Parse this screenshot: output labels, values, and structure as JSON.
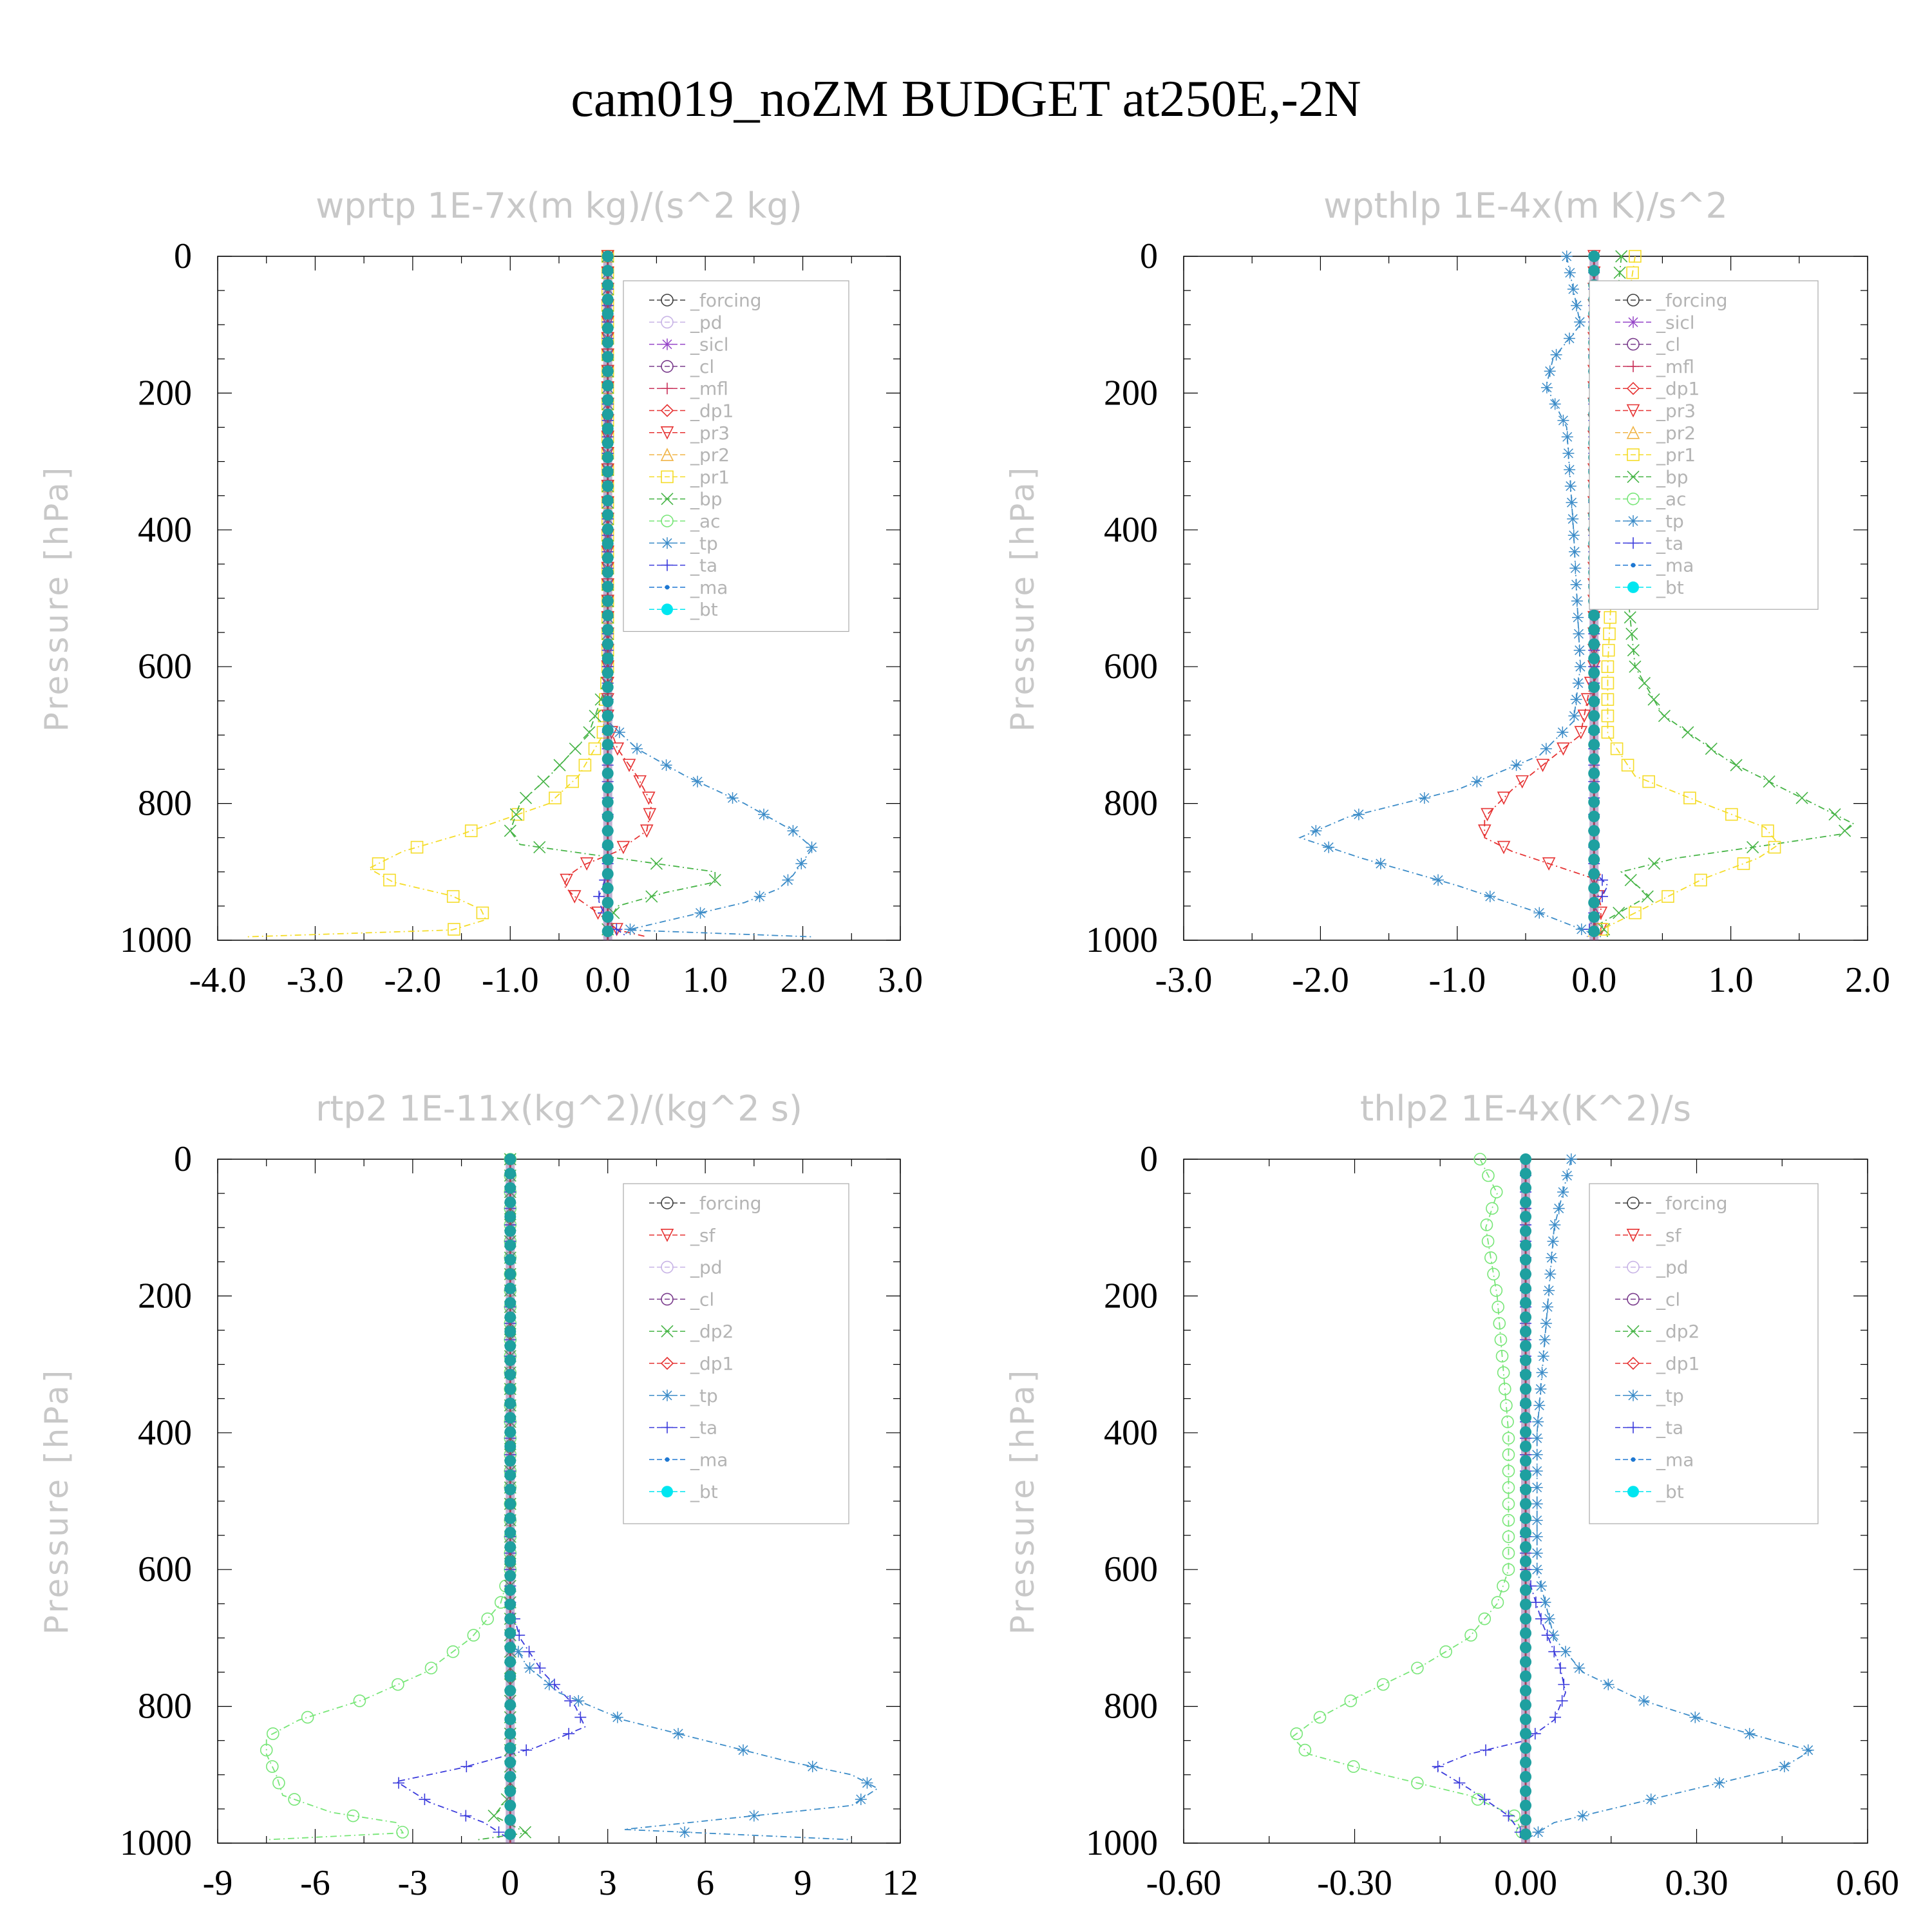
{
  "figure": {
    "title": "cam019_noZM  BUDGET at250E,-2N"
  },
  "colors": {
    "black": "#404040",
    "lavender": "#c8b4e6",
    "violet": "#9646c8",
    "purple": "#7a3c8c",
    "crimson": "#c8325a",
    "red": "#e63232",
    "orange": "#f0b446",
    "yellow": "#f5dc28",
    "green": "#46b446",
    "lightgreen": "#78e678",
    "steelblue": "#3c8cc8",
    "blue": "#3c3cdc",
    "azure": "#1e78d2",
    "cyan": "#00e6f0",
    "bt_fill": "#1ea0a0"
  },
  "chart_data": [
    {
      "type": "line",
      "title": "wprtp  1E-7x(m kg)/(s^2 kg)",
      "ylabel": "Pressure [hPa]",
      "xlabel": "",
      "xlim": [
        -4.0,
        3.0
      ],
      "ylim": [
        1000,
        0
      ],
      "y_inverted": true,
      "xticks": [
        "-4.0",
        "-3.0",
        "-2.0",
        "-1.0",
        "0.0",
        "1.0",
        "2.0",
        "3.0"
      ],
      "yticks": [
        "0",
        "200",
        "400",
        "600",
        "800",
        "1000"
      ],
      "legend_position": "upper-right",
      "legend": [
        "_forcing",
        "_pd",
        "_sicl",
        "_cl",
        "_mfl",
        "_dp1",
        "_pr3",
        "_pr2",
        "_pr1",
        "_bp",
        "_ac",
        "_tp",
        "_ta",
        "_ma",
        "_bt"
      ],
      "series": [
        {
          "name": "_pr1",
          "color": "yellow",
          "marker": "square",
          "p": [
            0,
            600,
            700,
            760,
            800,
            820,
            845,
            870,
            895,
            915,
            935,
            955,
            970,
            985,
            995
          ],
          "x": [
            0,
            0,
            -0.05,
            -0.3,
            -0.6,
            -1.0,
            -1.5,
            -2.1,
            -2.45,
            -2.2,
            -1.6,
            -1.3,
            -1.25,
            -1.6,
            -3.7
          ]
        },
        {
          "name": "_bp",
          "color": "green",
          "marker": "x",
          "p": [
            0,
            620,
            700,
            760,
            800,
            840,
            860,
            880,
            900,
            915,
            930,
            950,
            975,
            995
          ],
          "x": [
            0,
            0,
            -0.2,
            -0.6,
            -0.9,
            -1.0,
            -0.9,
            0.1,
            1.1,
            1.1,
            0.6,
            0.1,
            0.0,
            0.0
          ]
        },
        {
          "name": "_pr3",
          "color": "red",
          "marker": "triangle-down",
          "p": [
            0,
            680,
            720,
            760,
            800,
            840,
            870,
            890,
            905,
            920,
            935,
            960,
            985,
            995
          ],
          "x": [
            0,
            0,
            0.1,
            0.3,
            0.45,
            0.4,
            0.1,
            -0.25,
            -0.4,
            -0.45,
            -0.35,
            -0.1,
            0.1,
            0.4
          ]
        },
        {
          "name": "_tp",
          "color": "steelblue",
          "marker": "asterisk",
          "p": [
            0,
            680,
            720,
            760,
            800,
            840,
            865,
            885,
            905,
            925,
            945,
            965,
            985,
            995
          ],
          "x": [
            0,
            0,
            0.3,
            0.8,
            1.4,
            1.9,
            2.1,
            2.0,
            1.9,
            1.75,
            1.4,
            0.8,
            0.2,
            2.1
          ]
        },
        {
          "name": "_ta",
          "color": "blue",
          "marker": "plus",
          "p": [
            0,
            900,
            940,
            975,
            995
          ],
          "x": [
            0,
            0,
            -0.1,
            0,
            0.2
          ]
        },
        {
          "name": "_bt",
          "color": "bt_fill",
          "marker": "dot",
          "p": [
            0,
            1000
          ],
          "x": [
            0,
            0
          ]
        }
      ]
    },
    {
      "type": "line",
      "title": "wpthlp  1E-4x(m K)/s^2",
      "ylabel": "Pressure [hPa]",
      "xlabel": "",
      "xlim": [
        -3.0,
        2.0
      ],
      "ylim": [
        1000,
        0
      ],
      "y_inverted": true,
      "xticks": [
        "-3.0",
        "-2.0",
        "-1.0",
        "0.0",
        "1.0",
        "2.0"
      ],
      "yticks": [
        "0",
        "200",
        "400",
        "600",
        "800",
        "1000"
      ],
      "legend_position": "upper-right",
      "legend": [
        "_forcing",
        "_sicl",
        "_cl",
        "_mfl",
        "_dp1",
        "_pr3",
        "_pr2",
        "_pr1",
        "_bp",
        "_ac",
        "_tp",
        "_ta",
        "_ma",
        "_bt"
      ],
      "series": [
        {
          "name": "_tp",
          "color": "steelblue",
          "marker": "asterisk",
          "p": [
            0,
            100,
            150,
            190,
            250,
            400,
            600,
            680,
            730,
            780,
            820,
            850,
            880,
            920,
            960,
            995
          ],
          "x": [
            -0.2,
            -0.1,
            -0.3,
            -0.35,
            -0.2,
            -0.15,
            -0.1,
            -0.15,
            -0.4,
            -1.0,
            -1.8,
            -2.15,
            -1.7,
            -1.0,
            -0.4,
            0.05
          ]
        },
        {
          "name": "_pr3",
          "color": "red",
          "marker": "triangle-down",
          "p": [
            0,
            600,
            700,
            740,
            780,
            820,
            850,
            870,
            890,
            910,
            950,
            995
          ],
          "x": [
            0,
            0,
            -0.1,
            -0.35,
            -0.6,
            -0.8,
            -0.8,
            -0.6,
            -0.3,
            0,
            0.05,
            0.05
          ]
        },
        {
          "name": "_bp",
          "color": "green",
          "marker": "x",
          "p": [
            0,
            100,
            200,
            400,
            600,
            670,
            740,
            800,
            830,
            845,
            860,
            880,
            900,
            935,
            975,
            995
          ],
          "x": [
            0.2,
            0.15,
            0.3,
            0.2,
            0.3,
            0.5,
            1.0,
            1.6,
            1.9,
            1.8,
            1.3,
            0.6,
            0.2,
            0.4,
            0.05,
            0.1
          ]
        },
        {
          "name": "_pr1",
          "color": "yellow",
          "marker": "square",
          "p": [
            0,
            200,
            400,
            600,
            700,
            760,
            800,
            835,
            860,
            880,
            910,
            950,
            995
          ],
          "x": [
            0.3,
            0.15,
            0.15,
            0.1,
            0.1,
            0.3,
            0.8,
            1.25,
            1.35,
            1.2,
            0.8,
            0.4,
            -0.05
          ]
        },
        {
          "name": "_ta",
          "color": "blue",
          "marker": "plus",
          "p": [
            0,
            900,
            920,
            960,
            995
          ],
          "x": [
            0,
            0,
            0.1,
            0,
            -0.05
          ]
        },
        {
          "name": "_bt",
          "color": "bt_fill",
          "marker": "dot",
          "p": [
            0,
            1000
          ],
          "x": [
            0,
            0
          ]
        }
      ]
    },
    {
      "type": "line",
      "title": "rtp2  1E-11x(kg^2)/(kg^2 s)",
      "ylabel": "Pressure [hPa]",
      "xlabel": "",
      "xlim": [
        -9,
        12
      ],
      "ylim": [
        1000,
        0
      ],
      "y_inverted": true,
      "xticks": [
        "-9",
        "-6",
        "-3",
        "0",
        "3",
        "6",
        "9",
        "12"
      ],
      "yticks": [
        "0",
        "200",
        "400",
        "600",
        "800",
        "1000"
      ],
      "legend_position": "upper-right",
      "legend": [
        "_forcing",
        "_sf",
        "_pd",
        "_cl",
        "_dp2",
        "_dp1",
        "_tp",
        "_ta",
        "_ma",
        "_bt"
      ],
      "series": [
        {
          "name": "_dp1",
          "color": "lightgreen",
          "marker": "circle",
          "p": [
            0,
            600,
            650,
            700,
            750,
            790,
            820,
            845,
            870,
            900,
            930,
            955,
            970,
            985,
            995
          ],
          "x": [
            0,
            0,
            -0.3,
            -1.2,
            -2.6,
            -4.5,
            -6.5,
            -7.5,
            -7.5,
            -7.2,
            -7.0,
            -5.5,
            -3.5,
            -3.3,
            -7.5
          ]
        },
        {
          "name": "_tp",
          "color": "steelblue",
          "marker": "asterisk",
          "p": [
            0,
            700,
            740,
            780,
            820,
            850,
            880,
            900,
            920,
            945,
            965,
            980,
            995
          ],
          "x": [
            0,
            0,
            0.5,
            1.5,
            3.5,
            6.0,
            8.5,
            10.5,
            11.3,
            10.5,
            6.5,
            3.5,
            10.5
          ]
        },
        {
          "name": "_ta",
          "color": "blue",
          "marker": "plus",
          "p": [
            0,
            650,
            700,
            750,
            800,
            830,
            860,
            890,
            910,
            940,
            970,
            995
          ],
          "x": [
            0,
            0,
            0.3,
            1.0,
            2.0,
            2.3,
            0.8,
            -1.5,
            -3.5,
            -2.5,
            -0.8,
            0
          ]
        },
        {
          "name": "_dp2",
          "color": "green",
          "marker": "x",
          "p": [
            0,
            930,
            960,
            985,
            995
          ],
          "x": [
            0,
            0,
            -0.5,
            0.5,
            -1.0
          ]
        },
        {
          "name": "_bt",
          "color": "bt_fill",
          "marker": "dot",
          "p": [
            0,
            1000
          ],
          "x": [
            0,
            0
          ]
        }
      ]
    },
    {
      "type": "line",
      "title": "thlp2  1E-4x(K^2)/s",
      "ylabel": "Pressure [hPa]",
      "xlabel": "",
      "xlim": [
        -0.6,
        0.6
      ],
      "ylim": [
        1000,
        0
      ],
      "y_inverted": true,
      "xticks": [
        "-0.60",
        "-0.30",
        "0.00",
        "0.30",
        "0.60"
      ],
      "yticks": [
        "0",
        "200",
        "400",
        "600",
        "800",
        "1000"
      ],
      "legend_position": "upper-right",
      "legend": [
        "_forcing",
        "_sf",
        "_pd",
        "_cl",
        "_dp2",
        "_dp1",
        "_tp",
        "_ta",
        "_ma",
        "_bt"
      ],
      "series": [
        {
          "name": "_dp1",
          "color": "lightgreen",
          "marker": "circle",
          "p": [
            0,
            50,
            100,
            200,
            400,
            600,
            650,
            700,
            740,
            780,
            820,
            845,
            870,
            900,
            930,
            960,
            995
          ],
          "x": [
            -0.08,
            -0.05,
            -0.07,
            -0.05,
            -0.03,
            -0.03,
            -0.05,
            -0.1,
            -0.18,
            -0.28,
            -0.37,
            -0.41,
            -0.38,
            -0.25,
            -0.1,
            -0.02,
            0
          ]
        },
        {
          "name": "_tp",
          "color": "steelblue",
          "marker": "asterisk",
          "p": [
            0,
            100,
            200,
            400,
            600,
            700,
            750,
            790,
            830,
            865,
            890,
            920,
            950,
            970,
            995
          ],
          "x": [
            0.08,
            0.05,
            0.04,
            0.02,
            0.02,
            0.05,
            0.1,
            0.2,
            0.35,
            0.5,
            0.45,
            0.3,
            0.15,
            0.05,
            0
          ]
        },
        {
          "name": "_ta",
          "color": "blue",
          "marker": "plus",
          "p": [
            0,
            600,
            680,
            740,
            780,
            820,
            850,
            870,
            890,
            920,
            960,
            995
          ],
          "x": [
            0,
            0,
            0.03,
            0.06,
            0.07,
            0.05,
            0,
            -0.1,
            -0.16,
            -0.1,
            -0.03,
            0
          ]
        },
        {
          "name": "_bt",
          "color": "bt_fill",
          "marker": "dot",
          "p": [
            0,
            1000
          ],
          "x": [
            0,
            0
          ]
        }
      ]
    }
  ]
}
